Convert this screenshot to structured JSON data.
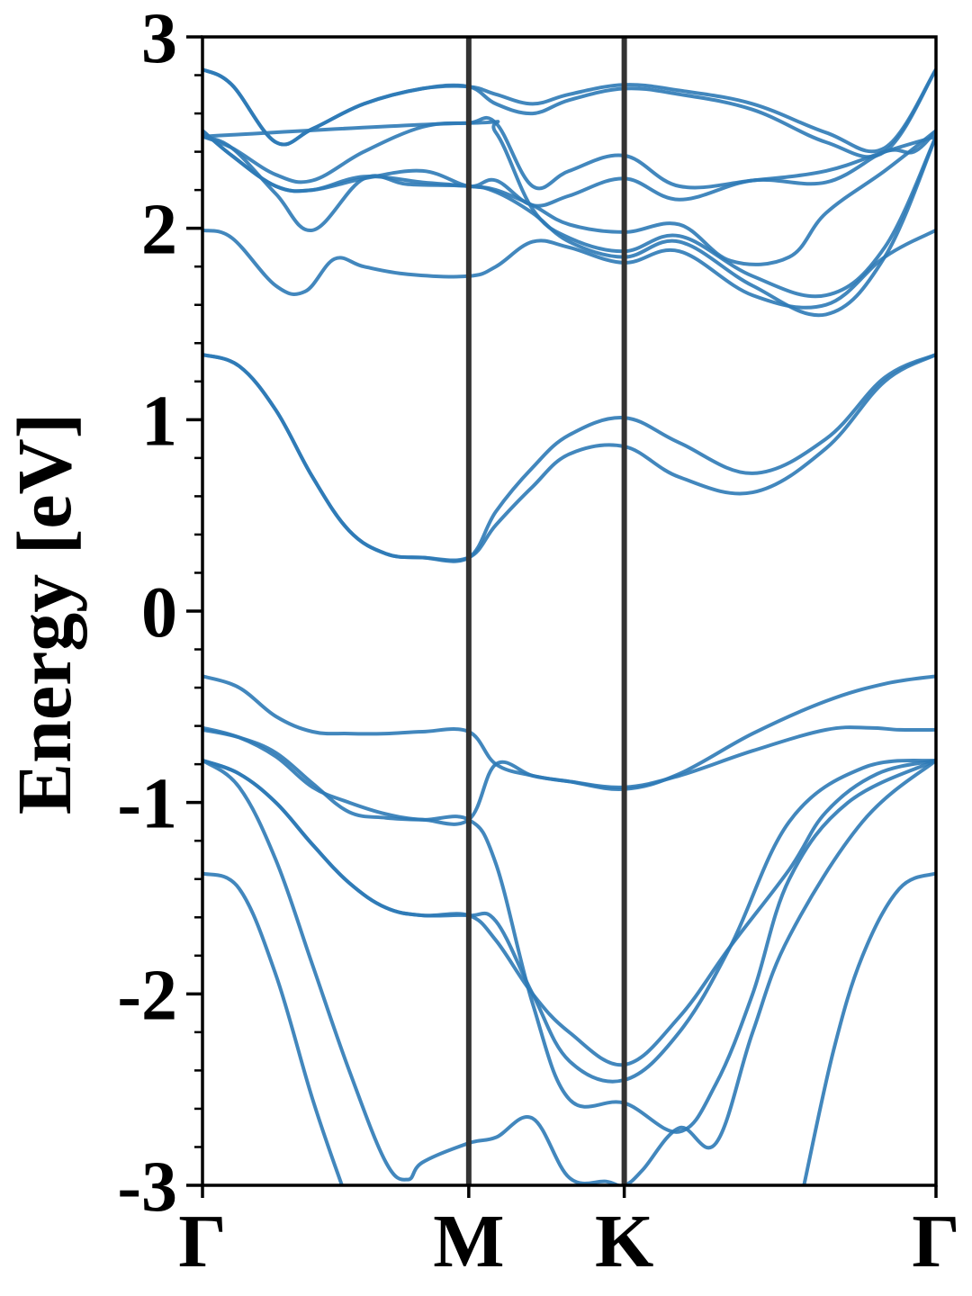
{
  "chart_data": {
    "type": "line",
    "title": "",
    "xlabel": "",
    "ylabel": "Energy [eV]",
    "ylim": [
      -3,
      3
    ],
    "yticks": [
      -3,
      -2,
      -1,
      0,
      1,
      2,
      3
    ],
    "ytick_labels": [
      "-3",
      "-2",
      "-1",
      "0",
      "1",
      "2",
      "3"
    ],
    "k_path": [
      {
        "label": "Γ",
        "k": 0
      },
      {
        "label": "M",
        "k": 0.363
      },
      {
        "label": "K",
        "k": 0.575
      },
      {
        "label": "Γ",
        "k": 1.0
      }
    ],
    "grid": false,
    "colors": {
      "bands": "#2e7ab6",
      "kpath_lines": "#333333",
      "axes": "#000000"
    },
    "series": [
      {
        "x": [
          0,
          0.05,
          0.1,
          0.15,
          0.2,
          0.25,
          0.3,
          0.363,
          0.4,
          0.45,
          0.5,
          0.575,
          0.65,
          0.75,
          0.85,
          0.93,
          1.0
        ],
        "values": [
          -0.34,
          -0.4,
          -0.55,
          -0.63,
          -0.64,
          -0.64,
          -0.63,
          -0.63,
          -0.8,
          -0.86,
          -0.89,
          -0.93,
          -0.85,
          -0.64,
          -0.47,
          -0.38,
          -0.34
        ]
      },
      {
        "x": [
          0,
          0.05,
          0.1,
          0.15,
          0.2,
          0.25,
          0.3,
          0.363,
          0.4,
          0.45,
          0.5,
          0.575,
          0.65,
          0.75,
          0.85,
          0.91,
          0.95,
          1.0
        ],
        "values": [
          -0.62,
          -0.66,
          -0.74,
          -0.9,
          -1.05,
          -1.08,
          -1.09,
          -1.09,
          -0.8,
          -0.86,
          -0.89,
          -0.92,
          -0.86,
          -0.73,
          -0.62,
          -0.61,
          -0.62,
          -0.62
        ]
      },
      {
        "x": [
          0,
          0.05,
          0.1,
          0.15,
          0.2,
          0.25,
          0.3,
          0.363,
          0.4,
          0.45,
          0.5,
          0.575,
          0.65,
          0.72,
          0.8,
          0.85,
          0.92,
          1.0
        ],
        "values": [
          -0.78,
          -0.85,
          -1.0,
          -1.22,
          -1.42,
          -1.55,
          -1.59,
          -1.59,
          -1.72,
          -2.0,
          -2.2,
          -2.37,
          -2.12,
          -1.75,
          -1.35,
          -1.05,
          -0.85,
          -0.78
        ]
      },
      {
        "x": [
          0,
          0.05,
          0.1,
          0.15,
          0.2,
          0.25,
          0.3,
          0.363,
          0.4,
          0.45,
          0.5,
          0.575,
          0.65,
          0.72,
          0.8,
          0.9,
          1.0
        ],
        "values": [
          -0.78,
          -0.85,
          -1.0,
          -1.22,
          -1.42,
          -1.55,
          -1.59,
          -1.59,
          -1.62,
          -2.0,
          -2.35,
          -2.45,
          -2.2,
          -1.75,
          -1.1,
          -0.82,
          -0.78
        ]
      },
      {
        "x": [
          0,
          0.05,
          0.1,
          0.15,
          0.2,
          0.25,
          0.3,
          0.363,
          0.4,
          0.45,
          0.5,
          0.575,
          0.65,
          0.7,
          0.75,
          0.8,
          0.88,
          1.0
        ],
        "values": [
          -0.61,
          -0.66,
          -0.76,
          -0.92,
          -1.0,
          -1.06,
          -1.09,
          -1.09,
          -1.32,
          -2.05,
          -2.55,
          -2.57,
          -2.72,
          -2.47,
          -2.0,
          -1.4,
          -1.0,
          -0.78
        ]
      },
      {
        "x": [
          0,
          0.05,
          0.1,
          0.15,
          0.2,
          0.25,
          0.28,
          0.3,
          0.363,
          0.4,
          0.45,
          0.5,
          0.55,
          0.575,
          0.6,
          0.65,
          0.7,
          0.75,
          0.8,
          0.9,
          1.0
        ],
        "values": [
          -0.78,
          -0.92,
          -1.3,
          -1.85,
          -2.4,
          -2.88,
          -2.97,
          -2.88,
          -2.78,
          -2.75,
          -2.65,
          -2.96,
          -2.98,
          -3.0,
          -2.92,
          -2.7,
          -2.78,
          -2.2,
          -1.7,
          -1.1,
          -0.78
        ]
      },
      {
        "x": [
          0,
          0.05,
          0.1,
          0.15,
          0.19,
          0.2
        ],
        "values": [
          -1.37,
          -1.45,
          -1.9,
          -2.55,
          -3.0,
          -3.1
        ]
      },
      {
        "x": [
          0.82,
          0.86,
          0.9,
          0.95,
          1.0
        ],
        "values": [
          -3.0,
          -2.3,
          -1.8,
          -1.45,
          -1.37
        ]
      },
      {
        "x": [
          0,
          0.05,
          0.1,
          0.15,
          0.2,
          0.25,
          0.3,
          0.363,
          0.4,
          0.45,
          0.5,
          0.575,
          0.65,
          0.75,
          0.85,
          0.93,
          1.0
        ],
        "values": [
          1.34,
          1.28,
          1.05,
          0.7,
          0.42,
          0.3,
          0.28,
          0.28,
          0.45,
          0.65,
          0.82,
          0.86,
          0.7,
          0.62,
          0.85,
          1.2,
          1.34
        ]
      },
      {
        "x": [
          0,
          0.05,
          0.1,
          0.15,
          0.2,
          0.25,
          0.3,
          0.363,
          0.4,
          0.45,
          0.5,
          0.575,
          0.65,
          0.75,
          0.85,
          0.93,
          1.0
        ],
        "values": [
          1.34,
          1.28,
          1.05,
          0.7,
          0.42,
          0.3,
          0.28,
          0.28,
          0.52,
          0.75,
          0.92,
          1.01,
          0.88,
          0.72,
          0.9,
          1.22,
          1.34
        ]
      },
      {
        "x": [
          0,
          0.04,
          0.1,
          0.14,
          0.18,
          0.22,
          0.28,
          0.363,
          0.4,
          0.45,
          0.5,
          0.575,
          0.65,
          0.75,
          0.85,
          0.93,
          1.0
        ],
        "values": [
          1.99,
          1.95,
          1.7,
          1.67,
          1.84,
          1.8,
          1.76,
          1.75,
          1.8,
          1.93,
          1.9,
          1.82,
          1.88,
          1.65,
          1.6,
          1.85,
          1.99
        ]
      },
      {
        "x": [
          0,
          0.04,
          0.1,
          0.15,
          0.22,
          0.28,
          0.363,
          0.4,
          0.45,
          0.5,
          0.575,
          0.65,
          0.75,
          0.85,
          0.93,
          1.0
        ],
        "values": [
          2.48,
          2.42,
          2.18,
          1.99,
          2.26,
          2.23,
          2.22,
          2.19,
          2.08,
          1.93,
          1.85,
          1.93,
          1.7,
          1.55,
          1.85,
          2.48
        ]
      },
      {
        "x": [
          0,
          0.04,
          0.1,
          0.15,
          0.22,
          0.3,
          0.363,
          0.4,
          0.45,
          0.5,
          0.575,
          0.65,
          0.72,
          0.8,
          0.85,
          0.93,
          1.0
        ],
        "values": [
          2.51,
          2.38,
          2.22,
          2.2,
          2.27,
          2.24,
          2.22,
          2.2,
          2.12,
          2.02,
          1.98,
          2.02,
          1.83,
          1.85,
          2.08,
          2.3,
          2.51
        ]
      },
      {
        "x": [
          0,
          0.04,
          0.1,
          0.15,
          0.22,
          0.3,
          0.363,
          0.4,
          0.45,
          0.5,
          0.575,
          0.65,
          0.75,
          0.85,
          0.93,
          0.97,
          1.0
        ],
        "values": [
          2.51,
          2.38,
          2.22,
          2.2,
          2.26,
          2.3,
          2.22,
          2.25,
          2.12,
          2.17,
          2.26,
          2.15,
          2.25,
          2.24,
          2.4,
          2.4,
          2.51
        ]
      },
      {
        "x": [
          0,
          0.04,
          0.1,
          0.15,
          0.22,
          0.3,
          0.363,
          0.4,
          0.45,
          0.5,
          0.575,
          0.65,
          0.75,
          0.85,
          0.93,
          1.0
        ],
        "values": [
          2.83,
          2.75,
          2.45,
          2.52,
          2.65,
          2.73,
          2.74,
          2.65,
          2.6,
          2.67,
          2.73,
          2.7,
          2.62,
          2.45,
          2.4,
          2.83
        ]
      },
      {
        "x": [
          0,
          0.04,
          0.1,
          0.15,
          0.22,
          0.3,
          0.363,
          0.4,
          0.45,
          0.5,
          0.575,
          0.65,
          0.75,
          0.85,
          0.93,
          1.0
        ],
        "values": [
          2.83,
          2.75,
          2.45,
          2.52,
          2.65,
          2.73,
          2.74,
          2.7,
          2.65,
          2.7,
          2.75,
          2.72,
          2.65,
          2.5,
          2.42,
          2.83
        ]
      },
      {
        "x": [
          0,
          0.04,
          0.1,
          0.15,
          0.22,
          0.3,
          0.363,
          0.4,
          0.45,
          0.5,
          0.575,
          0.65,
          0.75,
          0.85,
          0.93,
          1.0
        ],
        "values": [
          2.48,
          2.42,
          2.28,
          2.25,
          2.4,
          2.53,
          2.55,
          2.55,
          2.22,
          2.3,
          2.38,
          2.22,
          2.25,
          2.3,
          2.4,
          2.48
        ]
      },
      {
        "x": [
          0,
          0.363,
          0.4,
          0.45,
          0.5,
          0.575,
          0.65,
          0.75,
          0.85,
          0.93,
          1.0
        ],
        "values": [
          2.48,
          2.55,
          2.5,
          2.1,
          1.95,
          1.88,
          1.96,
          1.75,
          1.65,
          1.9,
          2.48
        ]
      }
    ]
  }
}
